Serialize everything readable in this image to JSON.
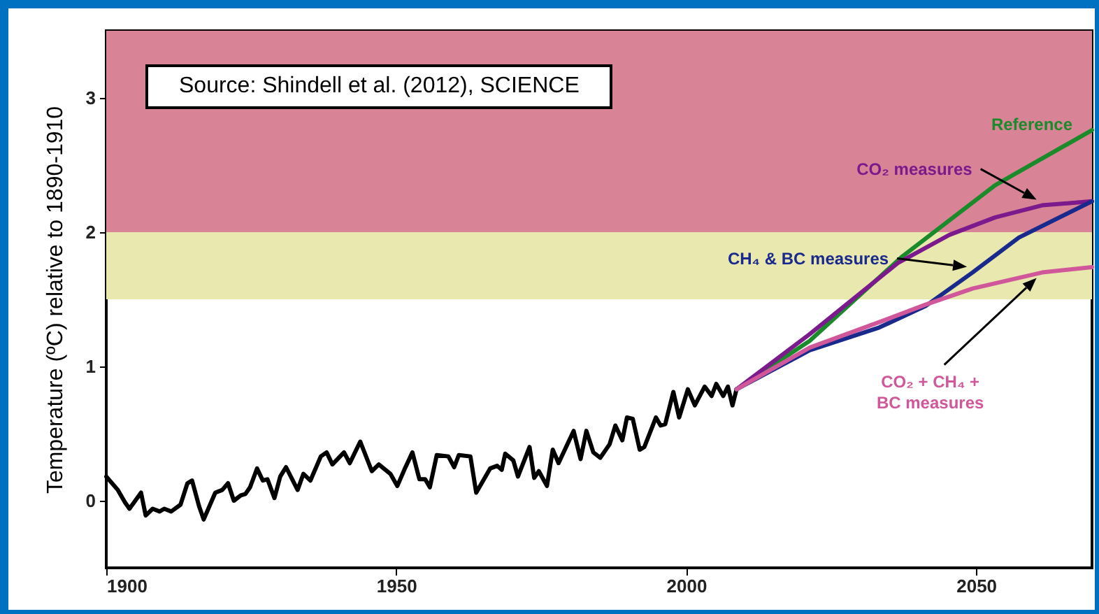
{
  "chart_data": {
    "type": "line",
    "xlabel": null,
    "ylabel": "Temperature (ºC) relative to 1890-1910",
    "annotations": [
      "Source:  Shindell et al. (2012), SCIENCE"
    ],
    "xlim": [
      1900,
      2070
    ],
    "xticks": [
      1900,
      1950,
      2000,
      2050
    ],
    "ylim": [
      -0.5,
      3.5
    ],
    "yticks": [
      0,
      1,
      2,
      3
    ],
    "grid": false,
    "legend": false,
    "bands": [
      {
        "axis": "y",
        "from": 2,
        "to": 3.5,
        "color": "#d98396"
      },
      {
        "axis": "y",
        "from": 1.5,
        "to": 2,
        "color": "#e9e8ae"
      }
    ],
    "series": [
      {
        "color": "#000000",
        "x": [
          1900,
          1902,
          1903.2,
          1904,
          1906,
          1906.8,
          1908,
          1909.2,
          1910,
          1911.2,
          1912.8,
          1914,
          1914.8,
          1916,
          1916.8,
          1918.8,
          1920,
          1921,
          1922,
          1923.2,
          1924,
          1924.8,
          1926,
          1927,
          1927.8,
          1929,
          1930,
          1931,
          1933,
          1934,
          1935.2,
          1937,
          1938,
          1939,
          1941,
          1942,
          1943.8,
          1945.8,
          1947,
          1949,
          1950.2,
          1951.4,
          1952.8,
          1954,
          1955,
          1955.8,
          1957,
          1959,
          1960,
          1960.8,
          1962.8,
          1963.8,
          1966.2,
          1967.4,
          1968.2,
          1968.8,
          1970.2,
          1971,
          1973,
          1973.8,
          1974.6,
          1976,
          1977,
          1978,
          1980.6,
          1981.8,
          1982.8,
          1984,
          1985.2,
          1986.8,
          1987.8,
          1989,
          1989.8,
          1990.8,
          1992,
          1992.8,
          1994.8,
          1995.6,
          1996.4,
          1997.8,
          1998.8,
          2000.3,
          2001.5,
          2003.2,
          2004.4,
          2005.2,
          2006.4,
          2007.2,
          2008,
          2008.7
        ],
        "values": [
          0.18,
          0.08,
          -0.01,
          -0.06,
          0.06,
          -0.11,
          -0.06,
          -0.08,
          -0.06,
          -0.08,
          -0.03,
          0.13,
          0.15,
          -0.04,
          -0.14,
          0.06,
          0.08,
          0.13,
          0.0,
          0.04,
          0.05,
          0.1,
          0.24,
          0.15,
          0.16,
          0.02,
          0.18,
          0.25,
          0.08,
          0.2,
          0.15,
          0.33,
          0.36,
          0.27,
          0.36,
          0.28,
          0.44,
          0.22,
          0.27,
          0.2,
          0.11,
          0.23,
          0.36,
          0.16,
          0.16,
          0.1,
          0.34,
          0.33,
          0.25,
          0.34,
          0.33,
          0.06,
          0.24,
          0.26,
          0.23,
          0.35,
          0.3,
          0.18,
          0.4,
          0.17,
          0.22,
          0.11,
          0.38,
          0.28,
          0.52,
          0.31,
          0.52,
          0.36,
          0.32,
          0.42,
          0.56,
          0.45,
          0.62,
          0.61,
          0.38,
          0.4,
          0.62,
          0.56,
          0.57,
          0.81,
          0.62,
          0.83,
          0.71,
          0.85,
          0.78,
          0.87,
          0.78,
          0.85,
          0.71,
          0.83
        ]
      },
      {
        "name": "Reference",
        "color": "#1a8a2a",
        "x": [
          2008.7,
          2021.3,
          2037.3,
          2053.3,
          2070
        ],
        "values": [
          0.83,
          1.19,
          1.82,
          2.35,
          2.76
        ]
      },
      {
        "name": "CO₂ measures",
        "color": "#7b1a8c",
        "x": [
          2008.7,
          2021.3,
          2036.5,
          2045.4,
          2053.3,
          2061.4,
          2070
        ],
        "values": [
          0.83,
          1.24,
          1.77,
          1.98,
          2.11,
          2.2,
          2.23
        ]
      },
      {
        "name": "CH₄ & BC measures",
        "color": "#1a2a8c",
        "x": [
          2008.7,
          2021.3,
          2033.3,
          2041.3,
          2049.4,
          2057.4,
          2070
        ],
        "values": [
          0.83,
          1.12,
          1.29,
          1.45,
          1.7,
          1.96,
          2.23
        ]
      },
      {
        "name": "CO₂ + CH₄ + BC measures",
        "color": "#d0589a",
        "x": [
          2008.7,
          2021.3,
          2033.3,
          2041.3,
          2049.4,
          2061.4,
          2070
        ],
        "values": [
          0.83,
          1.14,
          1.33,
          1.46,
          1.58,
          1.7,
          1.74
        ]
      }
    ]
  }
}
